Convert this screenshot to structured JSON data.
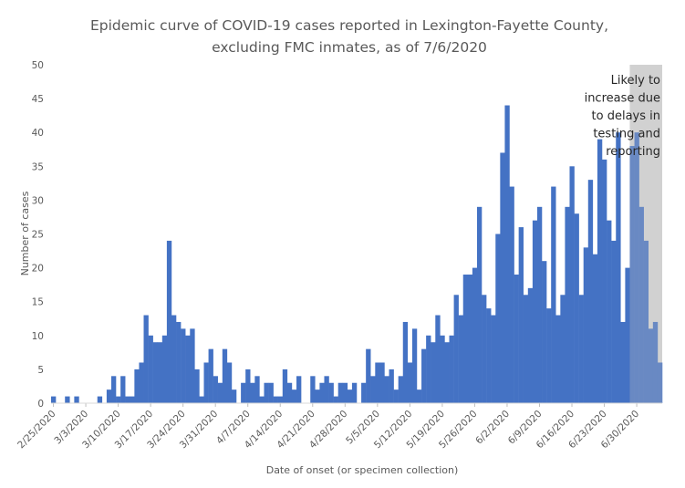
{
  "chart_data": {
    "type": "bar",
    "title": [
      "Epidemic curve of COVID-19 cases reported in Lexington-Fayette County,",
      "excluding FMC inmates, as of 7/6/2020"
    ],
    "xlabel": "Date of onset (or specimen collection)",
    "ylabel": "Number of cases",
    "ylim": [
      0,
      50
    ],
    "yticks": [
      0,
      5,
      10,
      15,
      20,
      25,
      30,
      35,
      40,
      45,
      50
    ],
    "grid": false,
    "start_date": "2/25/2020",
    "x_tick_labels": [
      "2/25/2020",
      "3/3/2020",
      "3/10/2020",
      "3/17/2020",
      "3/24/2020",
      "3/31/2020",
      "4/7/2020",
      "4/14/2020",
      "4/21/2020",
      "4/28/2020",
      "5/5/2020",
      "5/12/2020",
      "5/19/2020",
      "5/26/2020",
      "6/2/2020",
      "6/9/2020",
      "6/16/2020",
      "6/23/2020",
      "6/30/2020"
    ],
    "values": [
      1,
      0,
      0,
      1,
      0,
      1,
      0,
      0,
      0,
      0,
      1,
      0,
      2,
      4,
      1,
      4,
      1,
      1,
      5,
      6,
      13,
      10,
      9,
      9,
      10,
      24,
      13,
      12,
      11,
      10,
      11,
      5,
      1,
      6,
      8,
      4,
      3,
      8,
      6,
      2,
      0,
      3,
      5,
      3,
      4,
      1,
      3,
      3,
      1,
      1,
      5,
      3,
      2,
      4,
      0,
      0,
      4,
      2,
      3,
      4,
      3,
      1,
      3,
      3,
      2,
      3,
      0,
      3,
      8,
      4,
      6,
      6,
      4,
      5,
      2,
      4,
      12,
      6,
      11,
      2,
      8,
      10,
      9,
      13,
      10,
      9,
      10,
      16,
      13,
      19,
      19,
      20,
      29,
      16,
      14,
      13,
      25,
      37,
      44,
      32,
      19,
      26,
      16,
      17,
      27,
      29,
      21,
      14,
      32,
      13,
      16,
      29,
      35,
      28,
      16,
      23,
      33,
      22,
      39,
      36,
      27,
      24,
      40,
      12,
      20,
      38,
      40,
      29,
      24,
      11,
      12,
      6
    ],
    "color": "#4472C4",
    "shaded_region": {
      "start_index": 125,
      "color": "#BFBFBF",
      "annotation": [
        "Likely to",
        "increase due",
        "to delays in",
        "testing and",
        "reporting"
      ]
    }
  }
}
